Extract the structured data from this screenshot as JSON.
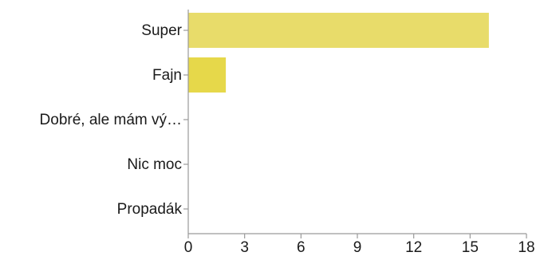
{
  "chart_data": {
    "type": "bar",
    "orientation": "horizontal",
    "categories": [
      "Super",
      "Fajn",
      "Dobré, ale mám vý…",
      "Nic moc",
      "Propadák"
    ],
    "values": [
      16,
      2,
      0,
      0,
      0
    ],
    "xlim": [
      0,
      18
    ],
    "xticks": [
      0,
      3,
      6,
      9,
      12,
      15,
      18
    ],
    "grid": false,
    "bar_colors": [
      "#e8dc6a",
      "#e6d84a",
      "#e6d84a",
      "#e6d84a",
      "#e6d84a"
    ]
  }
}
